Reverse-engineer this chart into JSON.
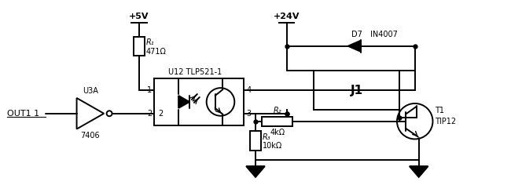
{
  "bg_color": "#ffffff",
  "line_color": "#000000",
  "labels": {
    "vcc5": "+5V",
    "vcc24": "+24V",
    "out1": "OUT1 1",
    "r1": "R₁",
    "r1_val": "471Ω",
    "u3a": "U3A",
    "u12": "U12 TLP521-1",
    "d7": "D7",
    "d7_part": "IN4007",
    "j1": "J1",
    "t1": "T1",
    "t1_part": "TIP12",
    "r2": "R₂",
    "r2_val": "4kΩ",
    "r3": "R₃",
    "r3_val": "10kΩ",
    "num7406": "7406",
    "pin1": "1",
    "pin2a": "2",
    "pin2b": "2",
    "pin3": "3",
    "pin4": "4"
  }
}
